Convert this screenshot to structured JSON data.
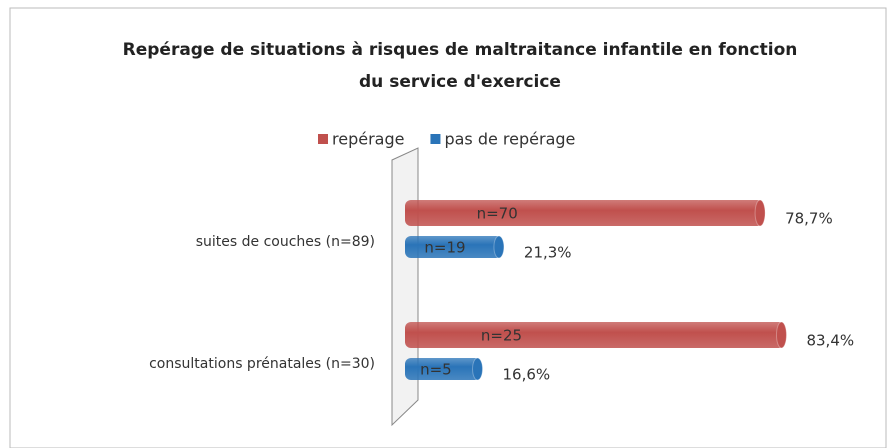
{
  "chart_data": {
    "type": "bar",
    "orientation": "horizontal",
    "title": [
      "Repérage de situations à risques de maltraitance infantile en fonction",
      "du service d'exercice"
    ],
    "categories": [
      "suites de couches (n=89)",
      "consultations prénatales (n=30)"
    ],
    "series": [
      {
        "name": "repérage",
        "color": "#c0504d",
        "values": [
          78.7,
          83.4
        ],
        "value_labels": [
          "78,7%",
          "83,4%"
        ],
        "n_labels": [
          "n=70",
          "n=25"
        ]
      },
      {
        "name": "pas de repérage",
        "color": "#2a74b8",
        "values": [
          21.3,
          16.6
        ],
        "value_labels": [
          "21,3%",
          "16,6%"
        ],
        "n_labels": [
          "n=19",
          "n=5"
        ]
      }
    ],
    "xlim": [
      0,
      100
    ],
    "legend": "top"
  }
}
